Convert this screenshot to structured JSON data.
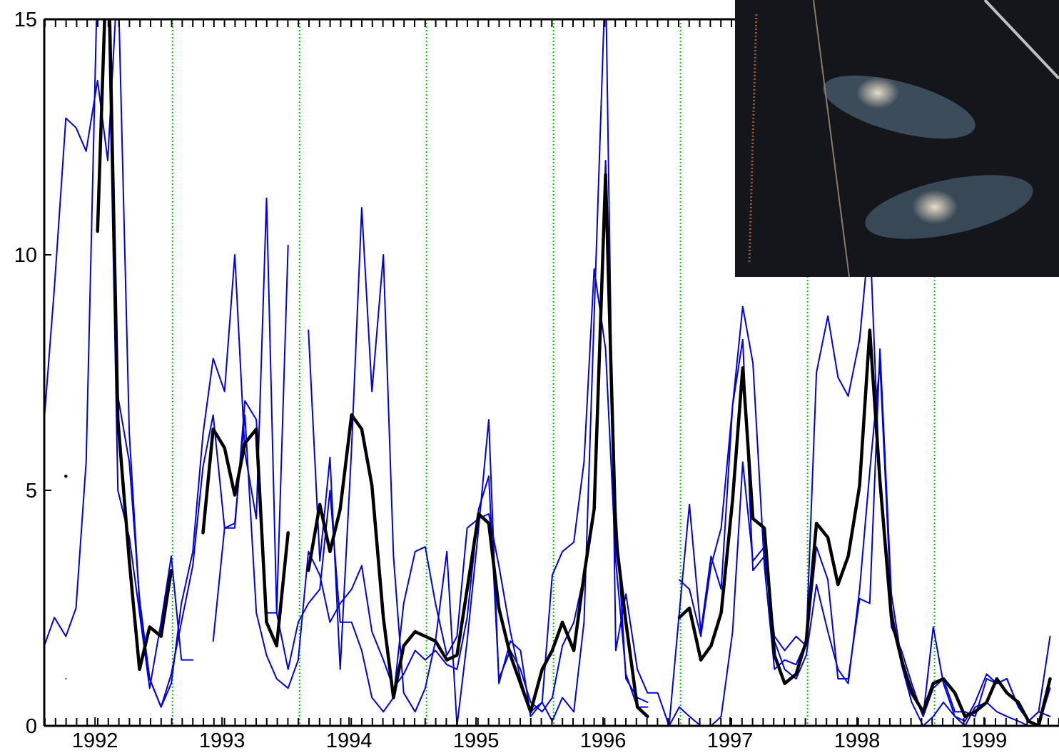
{
  "chart_data": {
    "type": "line",
    "x": [
      1991.6,
      1991.68,
      1991.77,
      1991.85,
      1991.93,
      1992.02,
      1992.1,
      1992.18,
      1992.27,
      1992.35,
      1992.43,
      1992.52,
      1992.6,
      1992.68,
      1992.77,
      1992.85,
      1992.93,
      1993.02,
      1993.1,
      1993.18,
      1993.27,
      1993.35,
      1993.43,
      1993.52,
      1993.6,
      1993.68,
      1993.77,
      1993.85,
      1993.93,
      1994.02,
      1994.1,
      1994.18,
      1994.27,
      1994.35,
      1994.43,
      1994.52,
      1994.6,
      1994.68,
      1994.77,
      1994.85,
      1994.93,
      1995.02,
      1995.1,
      1995.18,
      1995.27,
      1995.35,
      1995.43,
      1995.52,
      1995.6,
      1995.68,
      1995.77,
      1995.85,
      1995.93,
      1996.02,
      1996.1,
      1996.18,
      1996.27,
      1996.35,
      1996.43,
      1996.52,
      1996.6,
      1996.68,
      1996.77,
      1996.85,
      1996.93,
      1997.02,
      1997.1,
      1997.18,
      1997.27,
      1997.35,
      1997.43,
      1997.52,
      1997.6,
      1997.68,
      1997.77,
      1997.85,
      1997.93,
      1998.02,
      1998.1,
      1998.18,
      1998.27,
      1998.35,
      1998.43,
      1998.52,
      1998.6,
      1998.68,
      1998.77,
      1998.85,
      1998.93,
      1999.02,
      1999.1,
      1999.18,
      1999.27,
      1999.35,
      1999.43,
      1999.52
    ],
    "series": [
      {
        "color": "#0000e0",
        "values": [
          6.5,
          9.3,
          12.9,
          12.7,
          12.2,
          13.7,
          12.0,
          16,
          6.2,
          2.6,
          1.0,
          0.4,
          0.9,
          2.6,
          3.7,
          6.2,
          7.8,
          7.1,
          10.0,
          5.8,
          4.4,
          11.2,
          2.4,
          10.2,
          null,
          8.4,
          3.5,
          5.7,
          1.2,
          5.9,
          11.0,
          7.1,
          10.0,
          3.6,
          0.7,
          0.3,
          0.8,
          1.8,
          3.7,
          0.0,
          1.8,
          4.2,
          6.5,
          0.9,
          1.8,
          1.6,
          0.2,
          0.5,
          0.1,
          0.6,
          0.3,
          2.2,
          8.7,
          16,
          1.6,
          2.8,
          1.2,
          0.7,
          0.7,
          0.0,
          2.4,
          4.7,
          2.0,
          3.6,
          2.9,
          6.8,
          8.9,
          7.7,
          3.4,
          1.2,
          1.4,
          1.3,
          1.8,
          7.5,
          8.7,
          7.4,
          7.0,
          8.2,
          10.5,
          5.0,
          2.1,
          1.6,
          0.9,
          0.2,
          2.1,
          0.9,
          0.2,
          0.1,
          0.5,
          1.1,
          0.9,
          1.0,
          0.4,
          0.1,
          0.3,
          1.9
        ]
      },
      {
        "color": "#0000e0",
        "values": [
          1.7,
          2.3,
          1.9,
          2.5,
          5.6,
          16,
          16,
          5.0,
          4.0,
          2.4,
          0.8,
          2.2,
          3.6,
          1.4,
          1.4,
          null,
          1.8,
          4.2,
          4.2,
          6.9,
          6.5,
          2.4,
          2.4,
          1.2,
          2.2,
          2.6,
          2.9,
          5.0,
          2.2,
          2.2,
          1.6,
          0.6,
          0.3,
          0.6,
          2.6,
          3.7,
          3.8,
          2.6,
          1.5,
          1.9,
          4.2,
          4.4,
          4.5,
          3.4,
          2.0,
          1.0,
          0.3,
          0.5,
          3.2,
          3.7,
          3.9,
          5.6,
          9.7,
          8.0,
          3.5,
          1.1,
          0.4,
          0.4,
          null,
          null,
          3.1,
          2.9,
          1.9,
          3.4,
          4.2,
          6.8,
          8.2,
          3.3,
          3.6,
          1.9,
          1.6,
          1.9,
          1.7,
          3.8,
          3.1,
          1.0,
          1.0,
          2.7,
          2.6,
          8.0,
          2.8,
          1.4,
          0.8,
          0.2,
          0.8,
          1.0,
          0.3,
          0.3,
          0.2,
          1.0,
          0.9,
          1.0,
          0.4,
          0.1,
          0.3,
          0.2
        ]
      },
      {
        "color": "#0000e0",
        "values": [
          null,
          null,
          1.0,
          null,
          null,
          null,
          null,
          7.0,
          5.6,
          2.7,
          1.0,
          0.4,
          1.1,
          2.2,
          3.4,
          5.5,
          6.6,
          4.2,
          4.3,
          6.6,
          2.4,
          1.5,
          1.0,
          0.8,
          1.4,
          3.7,
          3.2,
          2.2,
          2.6,
          2.9,
          3.4,
          2.0,
          1.4,
          0.8,
          1.1,
          1.6,
          1.4,
          1.6,
          1.3,
          1.2,
          2.3,
          4.6,
          5.3,
          1.0,
          1.6,
          1.2,
          0.5,
          0.3,
          0.6,
          1.7,
          2.2,
          3.2,
          4.5,
          12,
          4.6,
          1.0,
          0.6,
          0.5,
          null,
          0.0,
          0.4,
          0.2,
          0.0,
          0.0,
          0.2,
          2.0,
          5.6,
          3.5,
          3.8,
          1.8,
          1.2,
          1.0,
          1.5,
          3.0,
          2.0,
          1.2,
          0.9,
          2.9,
          5.4,
          7.7,
          2.5,
          1.3,
          0.5,
          0.0,
          0.2,
          0.5,
          0.2,
          0.0,
          0.4,
          0.5,
          0.3,
          0.2,
          0.1,
          0.0,
          0.0,
          0.8
        ]
      },
      {
        "color": "#000000",
        "width": 4.5,
        "values": [
          null,
          null,
          5.3,
          null,
          null,
          10.5,
          17,
          6.5,
          3.5,
          1.2,
          2.1,
          1.9,
          3.3,
          null,
          null,
          4.1,
          6.3,
          5.9,
          4.9,
          6.0,
          6.3,
          2.2,
          1.7,
          4.1,
          null,
          3.3,
          4.7,
          3.7,
          4.6,
          6.6,
          6.3,
          5.1,
          2.3,
          0.6,
          1.7,
          2.0,
          1.9,
          1.8,
          1.4,
          1.5,
          2.9,
          4.5,
          4.3,
          2.5,
          1.5,
          0.9,
          0.3,
          1.2,
          1.6,
          2.2,
          1.6,
          3.2,
          4.6,
          11.7,
          4.0,
          2.2,
          0.4,
          0.2,
          null,
          null,
          2.3,
          2.5,
          1.4,
          1.7,
          2.4,
          4.8,
          7.6,
          4.4,
          4.2,
          1.5,
          0.9,
          1.1,
          1.8,
          4.3,
          4.0,
          3.0,
          3.6,
          5.1,
          8.4,
          5.2,
          2.3,
          1.4,
          0.7,
          0.3,
          0.9,
          1.0,
          0.7,
          0.2,
          0.3,
          0.5,
          1.0,
          0.7,
          0.5,
          0.1,
          0.0,
          1.0
        ]
      }
    ],
    "xlim": [
      1991.6,
      1999.59
    ],
    "xticks": [
      1992,
      1993,
      1994,
      1995,
      1996,
      1997,
      1998,
      1999
    ],
    "ylim": [
      0,
      15
    ],
    "yticks": [
      0,
      5,
      10,
      15
    ],
    "vlines": [
      1992.61,
      1993.61,
      1994.61,
      1995.61,
      1996.61,
      1997.61,
      1998.61
    ],
    "vline_color": "#00cc00"
  }
}
